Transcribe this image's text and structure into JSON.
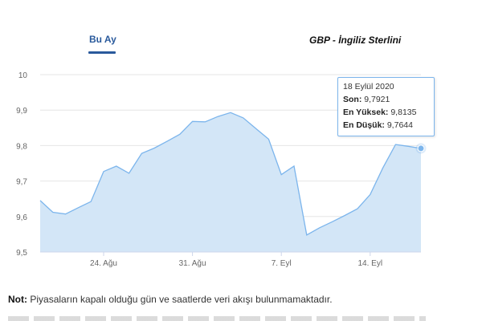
{
  "tabs": {
    "active_label": "Bu Ay"
  },
  "title": "GBP - İngiliz Sterlini",
  "tooltip": {
    "date": "18 Eylül 2020",
    "last_label": "Son:",
    "last_value": "9,7921",
    "high_label": "En Yüksek:",
    "high_value": "9,8135",
    "low_label": "En Düşük:",
    "low_value": "9,7644"
  },
  "note": {
    "label": "Not:",
    "text": "Piyasaların kapalı olduğu gün ve saatlerde veri akışı bulunmamaktadır."
  },
  "colors": {
    "line": "#7cb5ec",
    "fill": "#d3e6f7",
    "accent": "#2a5a9c"
  },
  "chart_data": {
    "type": "area",
    "x": [
      "2020-08-19",
      "2020-08-20",
      "2020-08-21",
      "2020-08-22",
      "2020-08-23",
      "2020-08-24",
      "2020-08-25",
      "2020-08-26",
      "2020-08-27",
      "2020-08-28",
      "2020-08-29",
      "2020-08-30",
      "2020-08-31",
      "2020-09-01",
      "2020-09-02",
      "2020-09-03",
      "2020-09-04",
      "2020-09-05",
      "2020-09-06",
      "2020-09-07",
      "2020-09-08",
      "2020-09-09",
      "2020-09-10",
      "2020-09-11",
      "2020-09-12",
      "2020-09-13",
      "2020-09-14",
      "2020-09-15",
      "2020-09-16",
      "2020-09-17",
      "2020-09-18"
    ],
    "series": [
      {
        "values": [
          9.645,
          9.612,
          9.607,
          9.625,
          9.642,
          9.727,
          9.742,
          9.722,
          9.778,
          9.793,
          9.812,
          9.832,
          9.868,
          9.867,
          9.882,
          9.893,
          9.878,
          9.848,
          9.818,
          9.718,
          9.742,
          9.548,
          9.568,
          9.585,
          9.603,
          9.622,
          9.662,
          9.737,
          9.803,
          9.798,
          9.792
        ]
      }
    ],
    "y_ticks": [
      "10",
      "9,9",
      "9,8",
      "9,7",
      "9,6",
      "9,5"
    ],
    "ylim": [
      9.5,
      10
    ],
    "x_ticks": [
      {
        "date": "2020-08-24",
        "label": "24. Ağu"
      },
      {
        "date": "2020-08-31",
        "label": "31. Ağu"
      },
      {
        "date": "2020-09-07",
        "label": "7. Eyl"
      },
      {
        "date": "2020-09-14",
        "label": "14. Eyl"
      }
    ],
    "grid": true,
    "highlight_date": "2020-09-18"
  }
}
